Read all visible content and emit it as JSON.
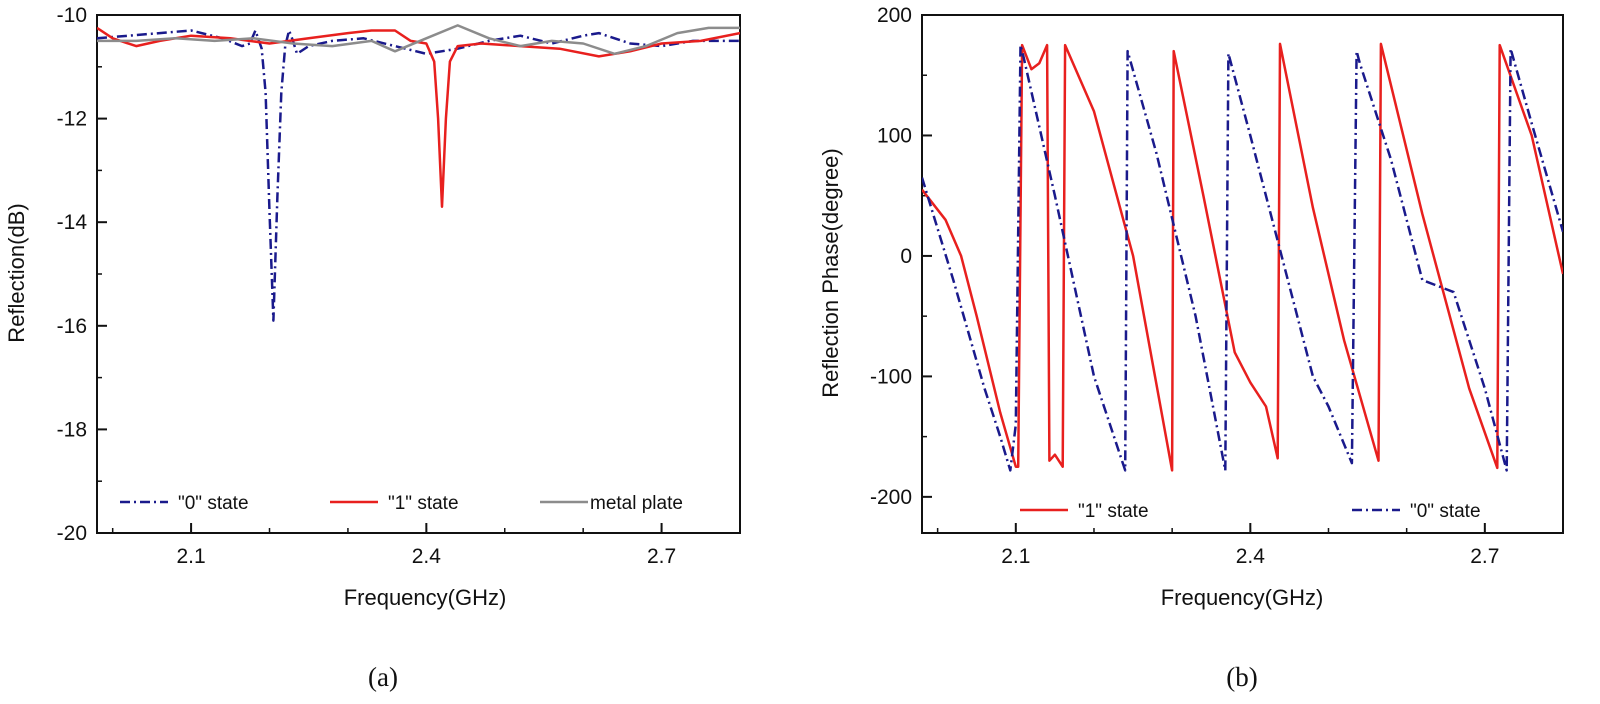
{
  "chart_data": [
    {
      "type": "line",
      "caption": "(a)",
      "xlabel": "Frequency(GHz)",
      "ylabel": "Reflection(dB)",
      "xlim": [
        1.98,
        2.8
      ],
      "ylim": [
        -20,
        -10
      ],
      "xticks": [
        2.1,
        2.4,
        2.7
      ],
      "xtick_labels": [
        "2.1",
        "2.4",
        "2.7"
      ],
      "yticks": [
        -20,
        -18,
        -16,
        -14,
        -12,
        -10
      ],
      "ytick_labels": [
        "-20",
        "-18",
        "-16",
        "-14",
        "-12",
        "-10"
      ],
      "grid": false,
      "legend": "bottom",
      "series": [
        {
          "name": "\"0\" state",
          "color": "#1a1a8c",
          "dash": "dashdot",
          "x": [
            1.98,
            2.02,
            2.06,
            2.1,
            2.14,
            2.165,
            2.175,
            2.182,
            2.19,
            2.195,
            2.2,
            2.205,
            2.21,
            2.215,
            2.22,
            2.225,
            2.23,
            2.235,
            2.25,
            2.28,
            2.32,
            2.36,
            2.4,
            2.44,
            2.48,
            2.52,
            2.56,
            2.6,
            2.62,
            2.66,
            2.7,
            2.74,
            2.8
          ],
          "y": [
            -10.45,
            -10.4,
            -10.35,
            -10.3,
            -10.45,
            -10.6,
            -10.55,
            -10.3,
            -10.65,
            -11.5,
            -13.8,
            -15.9,
            -13.5,
            -11.5,
            -10.6,
            -10.3,
            -10.5,
            -10.75,
            -10.6,
            -10.5,
            -10.45,
            -10.6,
            -10.75,
            -10.65,
            -10.5,
            -10.4,
            -10.55,
            -10.4,
            -10.35,
            -10.55,
            -10.6,
            -10.5,
            -10.5
          ]
        },
        {
          "name": "\"1\" state",
          "color": "#e8201e",
          "dash": "solid",
          "x": [
            1.98,
            2.0,
            2.03,
            2.06,
            2.1,
            2.15,
            2.2,
            2.25,
            2.3,
            2.33,
            2.36,
            2.38,
            2.4,
            2.41,
            2.415,
            2.42,
            2.425,
            2.43,
            2.44,
            2.47,
            2.52,
            2.57,
            2.62,
            2.66,
            2.7,
            2.75,
            2.8
          ],
          "y": [
            -10.25,
            -10.45,
            -10.6,
            -10.5,
            -10.4,
            -10.45,
            -10.55,
            -10.45,
            -10.35,
            -10.3,
            -10.3,
            -10.5,
            -10.55,
            -10.9,
            -12.0,
            -13.7,
            -12.0,
            -10.9,
            -10.6,
            -10.55,
            -10.6,
            -10.65,
            -10.8,
            -10.7,
            -10.55,
            -10.5,
            -10.35
          ]
        },
        {
          "name": "metal plate",
          "color": "#8c8c8c",
          "dash": "solid",
          "x": [
            1.98,
            2.03,
            2.08,
            2.13,
            2.18,
            2.23,
            2.28,
            2.33,
            2.36,
            2.4,
            2.44,
            2.48,
            2.52,
            2.56,
            2.6,
            2.64,
            2.68,
            2.72,
            2.76,
            2.8
          ],
          "y": [
            -10.5,
            -10.5,
            -10.45,
            -10.5,
            -10.45,
            -10.55,
            -10.6,
            -10.5,
            -10.7,
            -10.45,
            -10.2,
            -10.45,
            -10.6,
            -10.5,
            -10.55,
            -10.75,
            -10.6,
            -10.35,
            -10.25,
            -10.25
          ]
        }
      ]
    },
    {
      "type": "line",
      "caption": "(b)",
      "xlabel": "Frequency(GHz)",
      "ylabel": "Reflection  Phase(degree)",
      "xlim": [
        1.98,
        2.8
      ],
      "ylim": [
        -230,
        200
      ],
      "xticks": [
        2.1,
        2.4,
        2.7
      ],
      "xtick_labels": [
        "2.1",
        "2.4",
        "2.7"
      ],
      "yticks": [
        -200,
        -100,
        0,
        100,
        200
      ],
      "ytick_labels": [
        "-200",
        "-100",
        "0",
        "100",
        "200"
      ],
      "grid": false,
      "legend": "bottom",
      "series": [
        {
          "name": "\"1\" state",
          "color": "#e8201e",
          "dash": "solid",
          "x": [
            1.98,
            2.01,
            2.03,
            2.05,
            2.08,
            2.1,
            2.103,
            2.108,
            2.12,
            2.13,
            2.14,
            2.143,
            2.15,
            2.155,
            2.16,
            2.163,
            2.2,
            2.25,
            2.3,
            2.302,
            2.34,
            2.38,
            2.4,
            2.42,
            2.435,
            2.438,
            2.48,
            2.52,
            2.564,
            2.567,
            2.62,
            2.68,
            2.716,
            2.719,
            2.76,
            2.8
          ],
          "y": [
            55,
            30,
            0,
            -50,
            -130,
            -175,
            -175,
            175,
            155,
            160,
            175,
            -170,
            -165,
            -170,
            -175,
            175,
            120,
            0,
            -178,
            170,
            50,
            -80,
            -105,
            -125,
            -168,
            176,
            40,
            -70,
            -170,
            176,
            35,
            -110,
            -176,
            175,
            100,
            -15
          ]
        },
        {
          "name": "\"0\" state",
          "color": "#1a1a8c",
          "dash": "dashdot",
          "x": [
            1.98,
            2.02,
            2.06,
            2.08,
            2.093,
            2.1,
            2.106,
            2.11,
            2.15,
            2.2,
            2.24,
            2.243,
            2.28,
            2.33,
            2.368,
            2.372,
            2.4,
            2.44,
            2.48,
            2.5,
            2.53,
            2.536,
            2.54,
            2.58,
            2.62,
            2.66,
            2.7,
            2.728,
            2.733,
            2.76,
            2.8
          ],
          "y": [
            65,
            -20,
            -110,
            -150,
            -178,
            -140,
            175,
            165,
            50,
            -100,
            -178,
            170,
            85,
            -50,
            -178,
            168,
            100,
            0,
            -100,
            -125,
            -172,
            170,
            160,
            80,
            -20,
            -30,
            -110,
            -178,
            172,
            110,
            20
          ]
        }
      ]
    }
  ]
}
